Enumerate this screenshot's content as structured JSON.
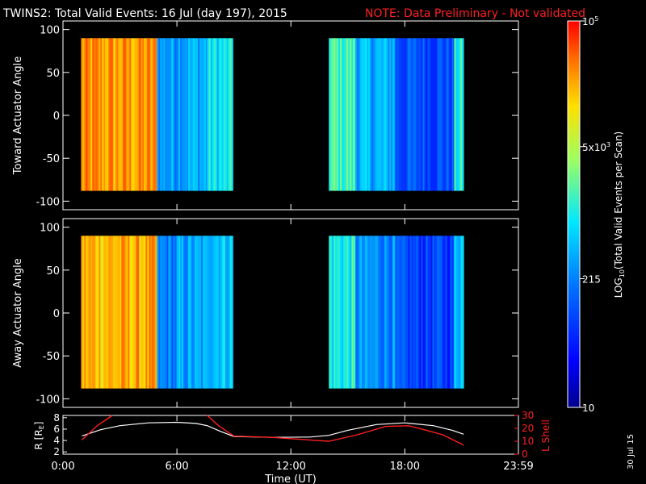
{
  "header": {
    "title": "TWINS2: Total Valid Events: 16 Jul (day 197), 2015",
    "note": "NOTE: Data Preliminary - Not validated"
  },
  "side_label": "30 Jul 15",
  "colors": {
    "background": "#000000",
    "axes": "#ffffff",
    "note": "#ff2020",
    "lshell": "#ff2020",
    "radius": "#ffffff"
  },
  "chart_data": [
    {
      "type": "heatmap",
      "name": "toward",
      "ylabel": "Toward Actuator Angle",
      "x_range_hours": [
        0,
        23.983
      ],
      "ylim": [
        -110,
        110
      ],
      "yticks": [
        100,
        50,
        0,
        -50,
        -100
      ],
      "data_y_range": [
        -88,
        90
      ],
      "blocks": [
        {
          "start_hour": 0.95,
          "end_hour": 8.95,
          "segments": [
            {
              "start": 0.95,
              "end": 4.95,
              "log_value": 4.4
            },
            {
              "start": 4.95,
              "end": 6.0,
              "log_value": 2.5
            },
            {
              "start": 6.0,
              "end": 7.6,
              "log_value": 2.6
            },
            {
              "start": 7.6,
              "end": 8.95,
              "log_value": 2.9
            }
          ]
        },
        {
          "start_hour": 14.0,
          "end_hour": 21.1,
          "segments": [
            {
              "start": 14.0,
              "end": 15.4,
              "log_value": 3.2
            },
            {
              "start": 15.4,
              "end": 17.5,
              "log_value": 2.6
            },
            {
              "start": 17.5,
              "end": 20.6,
              "log_value": 2.0
            },
            {
              "start": 20.6,
              "end": 21.1,
              "log_value": 3.0
            }
          ]
        }
      ]
    },
    {
      "type": "heatmap",
      "name": "away",
      "ylabel": "Away Actuator Angle",
      "x_range_hours": [
        0,
        23.983
      ],
      "ylim": [
        -110,
        110
      ],
      "yticks": [
        100,
        50,
        0,
        -50,
        -100
      ],
      "data_y_range": [
        -88,
        90
      ],
      "blocks": [
        {
          "start_hour": 0.95,
          "end_hour": 8.95,
          "segments": [
            {
              "start": 0.95,
              "end": 4.95,
              "log_value": 4.3
            },
            {
              "start": 4.95,
              "end": 6.0,
              "log_value": 2.3
            },
            {
              "start": 6.0,
              "end": 7.6,
              "log_value": 2.5
            },
            {
              "start": 7.6,
              "end": 8.95,
              "log_value": 2.8
            }
          ]
        },
        {
          "start_hour": 14.0,
          "end_hour": 21.1,
          "segments": [
            {
              "start": 14.0,
              "end": 15.4,
              "log_value": 3.0
            },
            {
              "start": 15.4,
              "end": 17.5,
              "log_value": 2.4
            },
            {
              "start": 17.5,
              "end": 20.6,
              "log_value": 1.9
            },
            {
              "start": 20.6,
              "end": 21.1,
              "log_value": 2.8
            }
          ]
        }
      ]
    },
    {
      "type": "line",
      "name": "ephemeris",
      "xlabel": "Time (UT)",
      "xticks": [
        "0:00",
        "6:00",
        "12:00",
        "18:00",
        "23:59"
      ],
      "xtick_hours": [
        0,
        6,
        12,
        18,
        23.983
      ],
      "left_axis": {
        "label": "R [R",
        "label_sub": "E",
        "label_end": "]",
        "ticks": [
          8,
          6,
          4,
          2
        ],
        "ylim": [
          1.6,
          8.4
        ]
      },
      "right_axis": {
        "label": "L Shell",
        "ticks": [
          30,
          20,
          10,
          0
        ],
        "ylim": [
          0,
          30
        ]
      },
      "series": [
        {
          "name": "R [RE]",
          "axis": "left",
          "x": [
            1.0,
            2.0,
            3.0,
            4.5,
            6.0,
            7.0,
            7.6,
            8.3,
            9.0,
            11.0,
            13.0,
            14.0,
            15.0,
            16.5,
            18.0,
            19.5,
            20.5,
            21.1
          ],
          "y": [
            4.8,
            5.9,
            6.6,
            7.1,
            7.2,
            7.0,
            6.6,
            5.6,
            4.7,
            4.55,
            4.6,
            4.9,
            5.8,
            6.8,
            7.1,
            6.6,
            5.8,
            5.1
          ]
        },
        {
          "name": "L Shell",
          "axis": "right",
          "x": [
            1.0,
            1.8,
            2.6,
            7.6,
            8.2,
            9.0,
            11.0,
            13.0,
            14.0,
            15.5,
            17.0,
            18.2,
            19.0,
            20.0,
            21.1
          ],
          "y": [
            11,
            22,
            31,
            31,
            22,
            14,
            13,
            11,
            10,
            15,
            21.5,
            22,
            19,
            15,
            7
          ]
        }
      ]
    }
  ],
  "colorbar": {
    "label_log": "LOG",
    "label_sub": "10",
    "label_rest": "(Total Valid Events per Scan)",
    "log_range": [
      1,
      5
    ],
    "ticks": [
      {
        "log_value": 5,
        "label": "10",
        "sup": "5"
      },
      {
        "log_value": 3.699,
        "label": "5x10",
        "sup": "3"
      },
      {
        "log_value": 2.332,
        "label": "215",
        "sup": ""
      },
      {
        "log_value": 1,
        "label": "10",
        "sup": ""
      }
    ]
  }
}
